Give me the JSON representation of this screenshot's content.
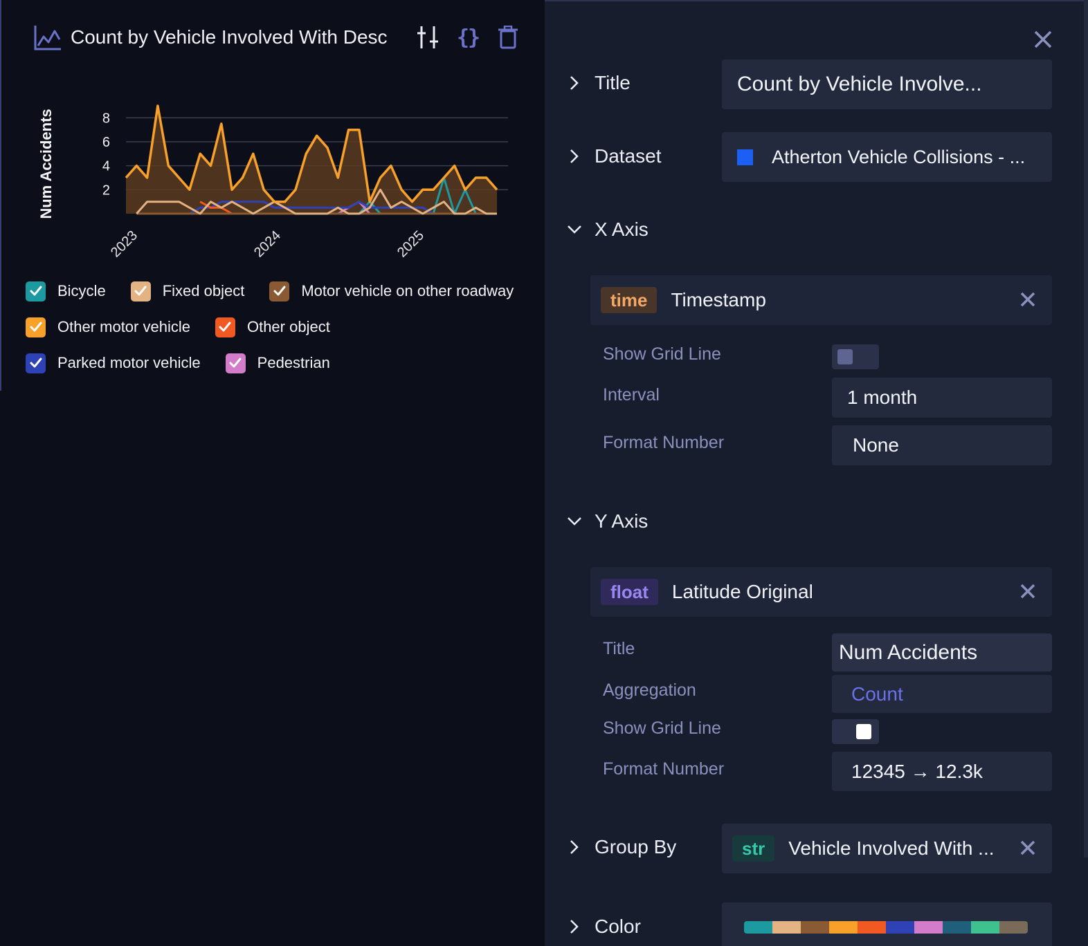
{
  "chart": {
    "title": "Count by Vehicle Involved With Desc",
    "icons": {
      "chart_type": "line-chart-icon",
      "settings": "sliders-icon",
      "code": "braces-icon",
      "delete": "trash-icon"
    },
    "braces_glyph": "{}"
  },
  "chart_data": {
    "type": "area",
    "ylabel": "Num Accidents",
    "xlabel": "",
    "y_ticks": [
      "2",
      "4",
      "6",
      "8"
    ],
    "x_ticks": [
      "2023",
      "2024",
      "2025"
    ],
    "ylim": [
      0,
      9
    ],
    "grid": true,
    "legend_position": "bottom",
    "series": [
      {
        "name": "Other motor vehicle",
        "color": "#f7a02a",
        "fill": true,
        "values": [
          3,
          4,
          3,
          9,
          4,
          3,
          2,
          5,
          4,
          7.5,
          2,
          3,
          5,
          2,
          1,
          1,
          2,
          5,
          6.5,
          5.5,
          3,
          7,
          7,
          1,
          3,
          4,
          2,
          1,
          2,
          2,
          3,
          4,
          2,
          3,
          3,
          2
        ]
      },
      {
        "name": "Fixed object",
        "color": "#e3b383",
        "values": [
          null,
          0,
          1,
          1,
          1,
          1,
          0.5,
          0,
          1,
          0.5,
          1,
          0.5,
          0,
          0.5,
          1,
          0.5,
          0,
          0,
          0,
          0,
          0.5,
          0,
          0,
          0.5,
          2,
          0.5,
          1,
          0.5,
          0,
          0.5,
          1,
          0,
          0,
          0.5,
          0,
          0
        ]
      },
      {
        "name": "Motor vehicle on other roadway",
        "color": "#8a5a34",
        "values": [
          null,
          0,
          0,
          0,
          0,
          0,
          0,
          0,
          0,
          0,
          0,
          0,
          0,
          0,
          0,
          0,
          0,
          0,
          0,
          0,
          0,
          0,
          0,
          0,
          0,
          0,
          0,
          0,
          0,
          0,
          0,
          0,
          0,
          0,
          0,
          0
        ]
      },
      {
        "name": "Other object",
        "color": "#f05a22",
        "values": [
          null,
          null,
          null,
          null,
          null,
          null,
          null,
          1,
          0.5,
          0.5,
          0,
          0,
          0,
          0,
          0,
          0,
          0,
          0,
          0,
          0,
          0,
          0,
          0,
          0,
          0,
          0,
          0,
          0,
          0,
          0,
          0,
          0,
          0,
          0,
          0,
          0
        ]
      },
      {
        "name": "Parked motor vehicle",
        "color": "#2f42b5",
        "values": [
          null,
          null,
          0,
          0,
          0,
          0,
          0,
          0.5,
          0.5,
          1,
          1,
          1,
          1,
          1,
          0.5,
          0.5,
          0.5,
          0.5,
          0.5,
          0.5,
          0.5,
          0.5,
          1,
          0.5,
          0.5,
          0.5,
          0.5,
          0.5,
          0.5,
          0,
          0,
          0,
          0,
          0,
          0,
          0
        ]
      },
      {
        "name": "Pedestrian",
        "color": "#d37cc9",
        "values": [
          null,
          null,
          null,
          0,
          0,
          0,
          0,
          0,
          0,
          0,
          0,
          0,
          0,
          0,
          0,
          0,
          0,
          0,
          0,
          0,
          0,
          0.5,
          1,
          0,
          0,
          0,
          0,
          0,
          0,
          0,
          0,
          0,
          0,
          0,
          0,
          0
        ]
      },
      {
        "name": "Bicycle",
        "color": "#1d9aa0",
        "values": [
          null,
          null,
          null,
          null,
          null,
          null,
          null,
          null,
          null,
          null,
          null,
          null,
          null,
          null,
          null,
          null,
          null,
          null,
          null,
          null,
          0,
          0,
          0,
          1,
          0,
          0,
          0,
          0,
          0,
          0,
          3,
          0,
          2,
          0,
          0,
          0
        ]
      }
    ]
  },
  "legend": {
    "rows": [
      [
        {
          "label": "Bicycle",
          "color": "#1d9aa0"
        },
        {
          "label": "Fixed object",
          "color": "#e3b383"
        },
        {
          "label": "Motor vehicle on other roadway",
          "color": "#8a5a34"
        }
      ],
      [
        {
          "label": "Other motor vehicle",
          "color": "#f7a02a"
        },
        {
          "label": "Other object",
          "color": "#f05a22"
        }
      ],
      [
        {
          "label": "Parked motor vehicle",
          "color": "#2f42b5"
        },
        {
          "label": "Pedestrian",
          "color": "#d37cc9"
        }
      ]
    ]
  },
  "settings": {
    "close_icon": "close-icon",
    "title": {
      "label": "Title",
      "value": "Count by Vehicle Involve..."
    },
    "dataset": {
      "label": "Dataset",
      "value": "Atherton Vehicle Collisions - ...",
      "color": "#1c5ff5"
    },
    "x_axis": {
      "label": "X Axis",
      "field": {
        "type": "time",
        "name": "Timestamp"
      },
      "show_grid_line": {
        "label": "Show Grid Line",
        "on": false
      },
      "interval": {
        "label": "Interval",
        "value": "1 month"
      },
      "format_number": {
        "label": "Format Number",
        "value": "None"
      }
    },
    "y_axis": {
      "label": "Y Axis",
      "field": {
        "type": "float",
        "name": "Latitude Original"
      },
      "title": {
        "label": "Title",
        "value": "Num Accidents"
      },
      "aggregation": {
        "label": "Aggregation",
        "value": "Count"
      },
      "show_grid_line": {
        "label": "Show Grid Line",
        "on": true
      },
      "format_number": {
        "label": "Format Number",
        "value": "12345 → 12.3k"
      }
    },
    "group_by": {
      "label": "Group By",
      "field": {
        "type": "str",
        "name": "Vehicle Involved With ..."
      }
    },
    "color": {
      "label": "Color",
      "palette": [
        "#1d9aa0",
        "#e3b383",
        "#8a5a34",
        "#f7a02a",
        "#f05a22",
        "#2f42b5",
        "#d37cc9",
        "#1f5f7a",
        "#3fc08f",
        "#7a6a58"
      ]
    }
  },
  "colors": {
    "accent": "#6a72c9",
    "time_badge_bg": "#4a3628",
    "time_badge_fg": "#f2a866",
    "float_badge_bg": "#2f2a5a",
    "float_badge_fg": "#9a86f0",
    "str_badge_bg": "#173a3d",
    "str_badge_fg": "#36c9a8"
  }
}
